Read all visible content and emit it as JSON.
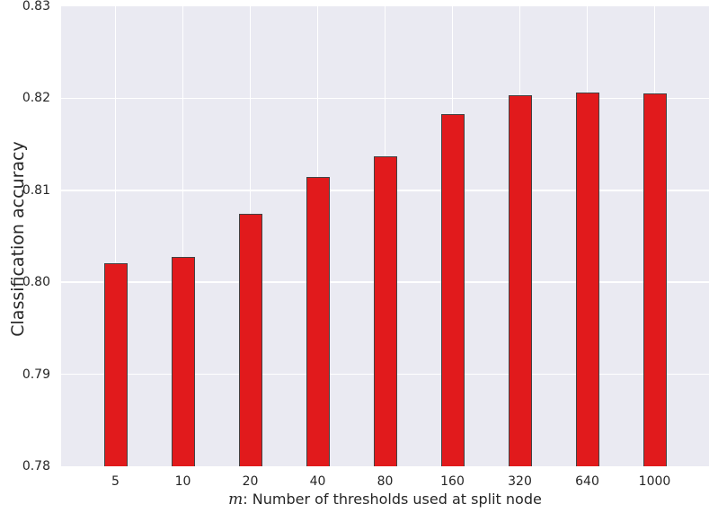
{
  "colors": {
    "figure_bg": "#ffffff",
    "plot_bg": "#eaeaf2",
    "grid": "#ffffff",
    "bar_fill": "#e11a1c",
    "bar_edge": "#424242",
    "text": "#262626"
  },
  "chart_data": {
    "type": "bar",
    "title": "",
    "xlabel": "m: Number of thresholds used at split node",
    "xlabel_math_prefix": "m",
    "xlabel_suffix": ": Number of thresholds used at split node",
    "ylabel": "Classification accuracy",
    "categories": [
      "5",
      "10",
      "20",
      "40",
      "80",
      "160",
      "320",
      "640",
      "1000"
    ],
    "values": [
      0.8021,
      0.8028,
      0.8074,
      0.8114,
      0.8137,
      0.8183,
      0.8203,
      0.8206,
      0.8205
    ],
    "ylim": [
      0.78,
      0.83
    ],
    "yticks": [
      0.78,
      0.79,
      0.8,
      0.81,
      0.82,
      0.83
    ],
    "ytick_labels": [
      "0.78",
      "0.79",
      "0.80",
      "0.81",
      "0.82",
      "0.83"
    ],
    "grid": true,
    "legend_position": "none"
  }
}
